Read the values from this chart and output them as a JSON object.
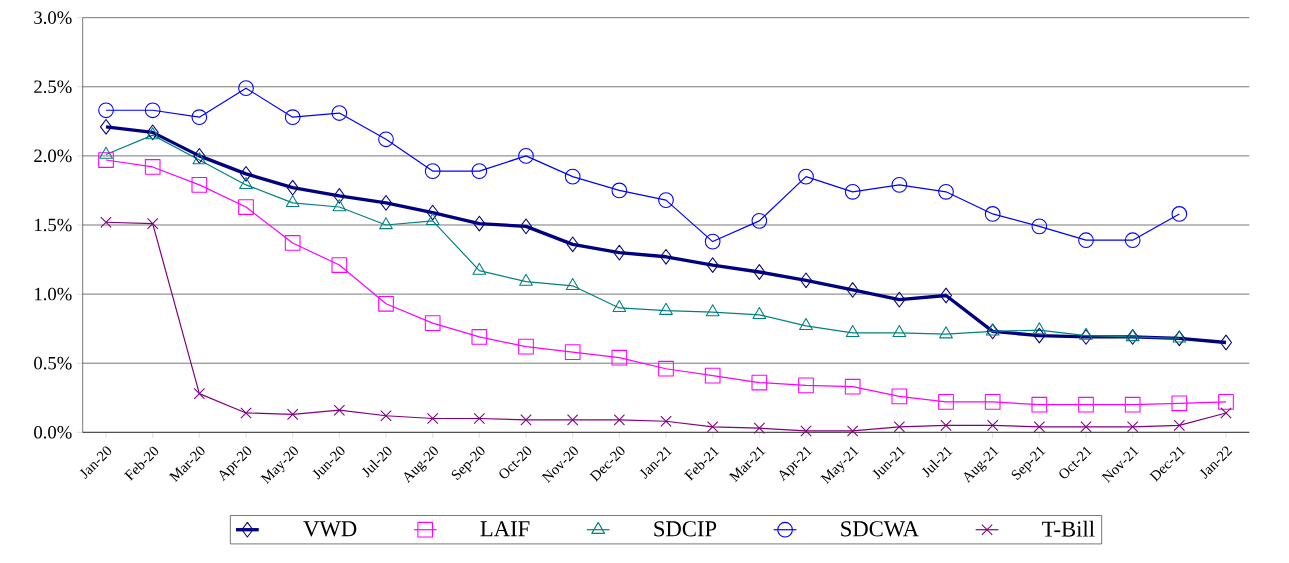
{
  "chart_data": {
    "type": "line",
    "categories": [
      "Jan-20",
      "Feb-20",
      "Mar-20",
      "Apr-20",
      "May-20",
      "Jun-20",
      "Jul-20",
      "Aug-20",
      "Sep-20",
      "Oct-20",
      "Nov-20",
      "Dec-20",
      "Jan-21",
      "Feb-21",
      "Mar-21",
      "Apr-21",
      "May-21",
      "Jun-21",
      "Jul-21",
      "Aug-21",
      "Sep-21",
      "Oct-21",
      "Nov-21",
      "Dec-21",
      "Jan-22"
    ],
    "series": [
      {
        "name": "VWD",
        "color": "#000080",
        "marker": "diamond",
        "values": [
          2.21,
          2.17,
          2.0,
          1.87,
          1.77,
          1.71,
          1.66,
          1.59,
          1.51,
          1.49,
          1.36,
          1.3,
          1.27,
          1.21,
          1.16,
          1.1,
          1.03,
          0.96,
          0.99,
          0.73,
          0.7,
          0.69,
          0.69,
          0.68,
          0.65
        ]
      },
      {
        "name": "LAIF",
        "color": "#ff00ff",
        "marker": "square",
        "values": [
          1.97,
          1.92,
          1.79,
          1.63,
          1.37,
          1.21,
          0.93,
          0.79,
          0.69,
          0.62,
          0.58,
          0.54,
          0.46,
          0.41,
          0.36,
          0.34,
          0.33,
          0.26,
          0.22,
          0.22,
          0.2,
          0.2,
          0.2,
          0.21,
          0.22
        ]
      },
      {
        "name": "SDCIP",
        "color": "#008080",
        "marker": "triangle",
        "values": [
          2.01,
          2.15,
          1.97,
          1.79,
          1.66,
          1.63,
          1.5,
          1.53,
          1.17,
          1.09,
          1.06,
          0.9,
          0.88,
          0.87,
          0.85,
          0.77,
          0.72,
          0.72,
          0.71,
          0.73,
          0.74,
          0.7,
          0.69,
          0.68,
          null
        ]
      },
      {
        "name": "SDCWA",
        "color": "#0000ff",
        "marker": "circle",
        "values": [
          2.33,
          2.33,
          2.28,
          2.49,
          2.28,
          2.31,
          2.12,
          1.89,
          1.89,
          2.0,
          1.85,
          1.75,
          1.68,
          1.38,
          1.53,
          1.85,
          1.74,
          1.79,
          1.74,
          1.58,
          1.49,
          1.39,
          1.39,
          1.58,
          null
        ]
      },
      {
        "name": "T-Bill",
        "color": "#800080",
        "marker": "cross",
        "values": [
          1.52,
          1.51,
          0.28,
          0.14,
          0.13,
          0.16,
          0.12,
          0.1,
          0.1,
          0.09,
          0.09,
          0.09,
          0.08,
          0.04,
          0.03,
          0.01,
          0.01,
          0.04,
          0.05,
          0.05,
          0.04,
          0.04,
          0.04,
          0.05,
          0.14
        ]
      }
    ],
    "ylim": [
      0,
      3
    ],
    "yticks": [
      {
        "value": 0,
        "label": "0.0%"
      },
      {
        "value": 0.5,
        "label": "0.5%"
      },
      {
        "value": 1,
        "label": "1.0%"
      },
      {
        "value": 1.5,
        "label": "1.5%"
      },
      {
        "value": 2,
        "label": "2.0%"
      },
      {
        "value": 2.5,
        "label": "2.5%"
      },
      {
        "value": 3,
        "label": "3.0%"
      }
    ],
    "grid": "y",
    "legend": "bottom",
    "line_style": "solid"
  }
}
